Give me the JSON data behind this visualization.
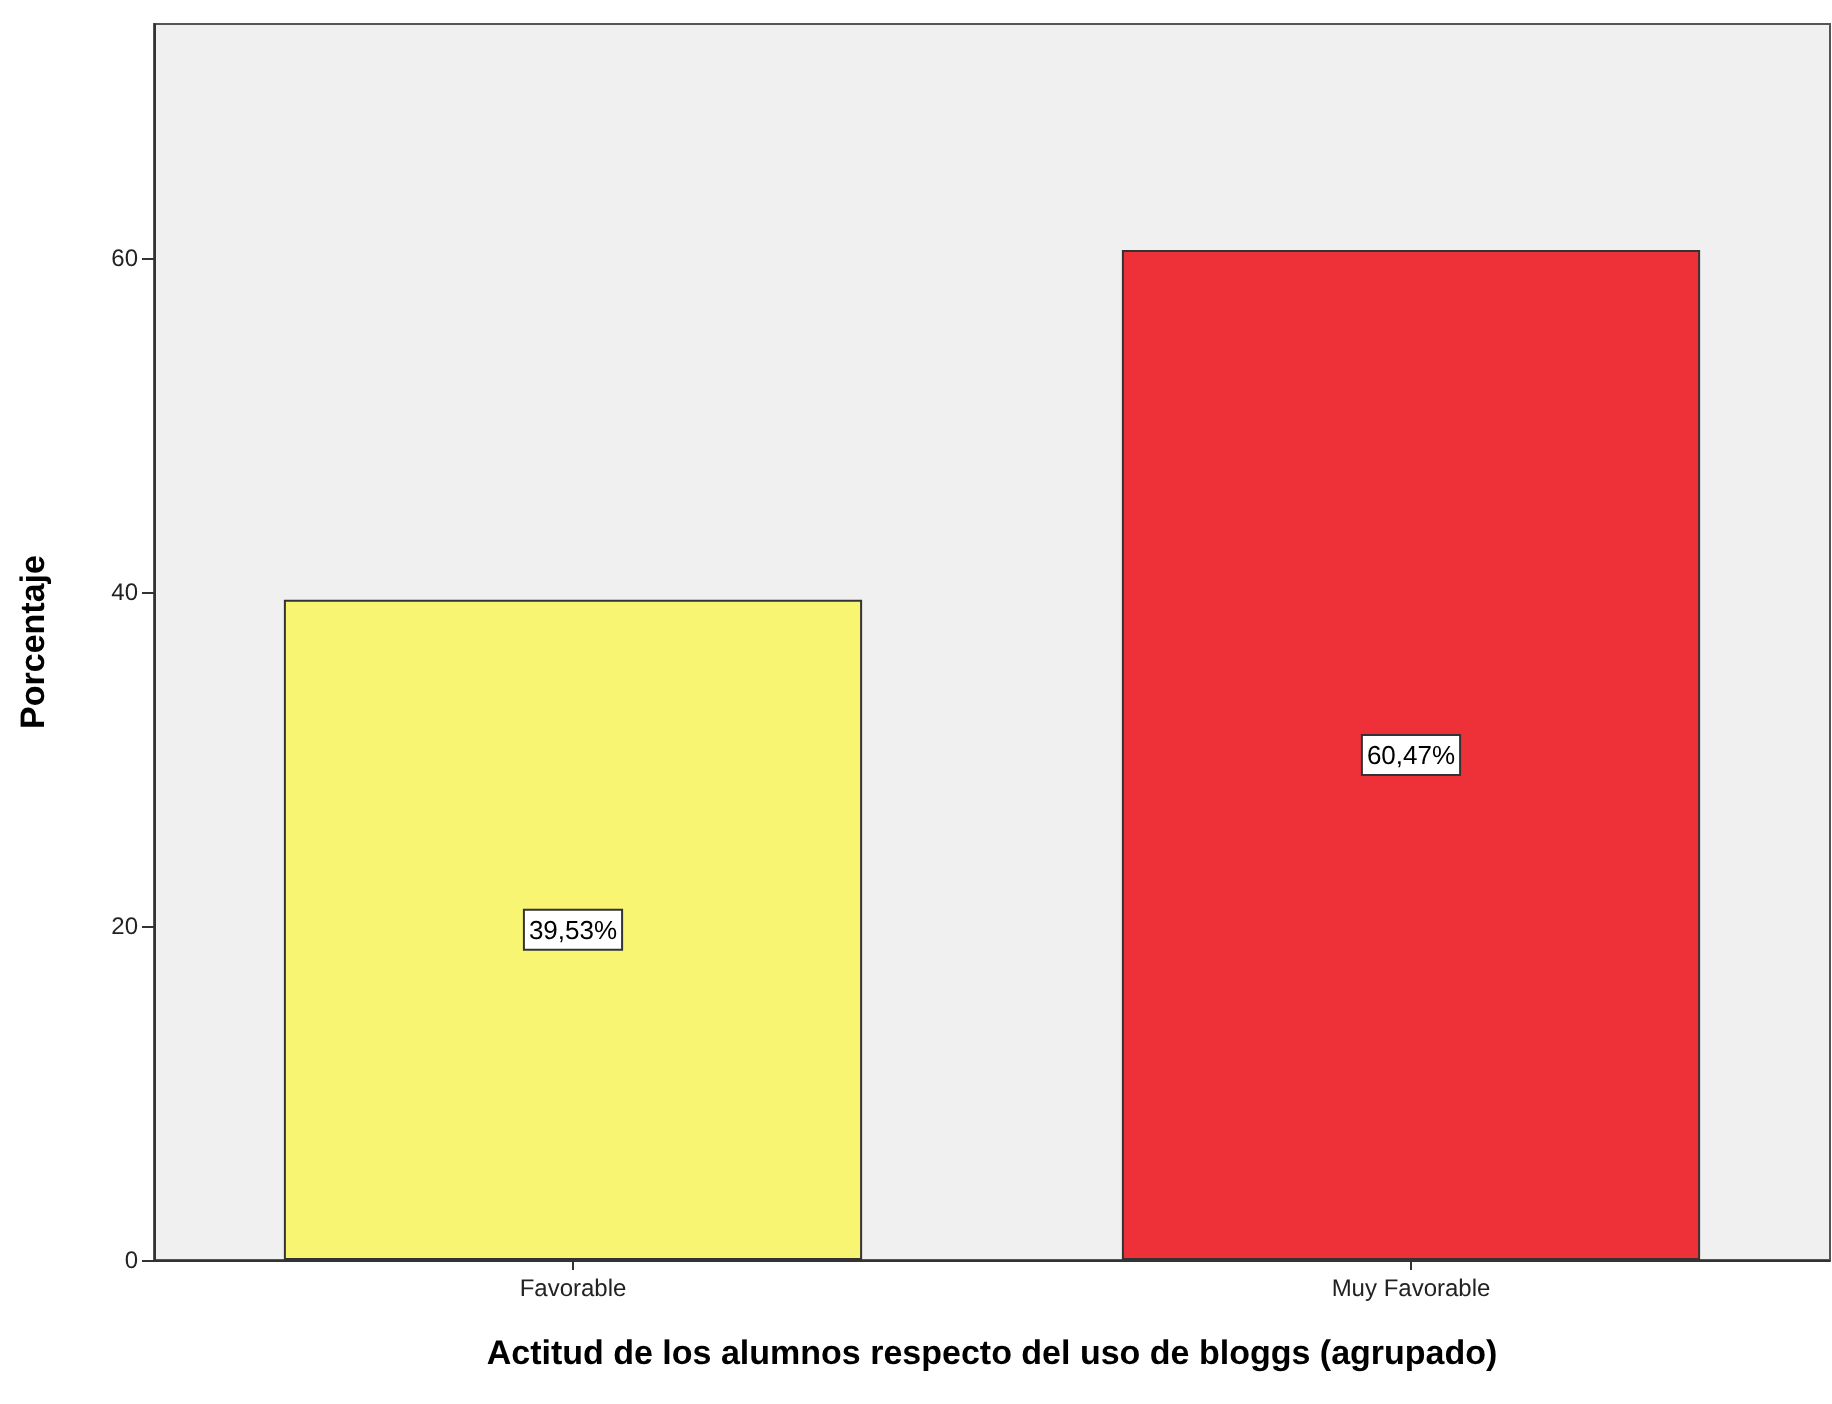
{
  "chart_data": {
    "type": "bar",
    "xlabel": "Actitud de los alumnos respecto del uso de bloggs (agrupado)",
    "ylabel": "Porcentaje",
    "categories": [
      "Favorable",
      "Muy Favorable"
    ],
    "values": [
      39.53,
      60.47
    ],
    "colors": [
      "#f8f572",
      "#ee3039"
    ],
    "value_labels": [
      "39,53%",
      "60,47%"
    ],
    "ylim": [
      0,
      74
    ],
    "yticks": [
      0,
      20,
      40,
      60
    ],
    "grid": false
  }
}
